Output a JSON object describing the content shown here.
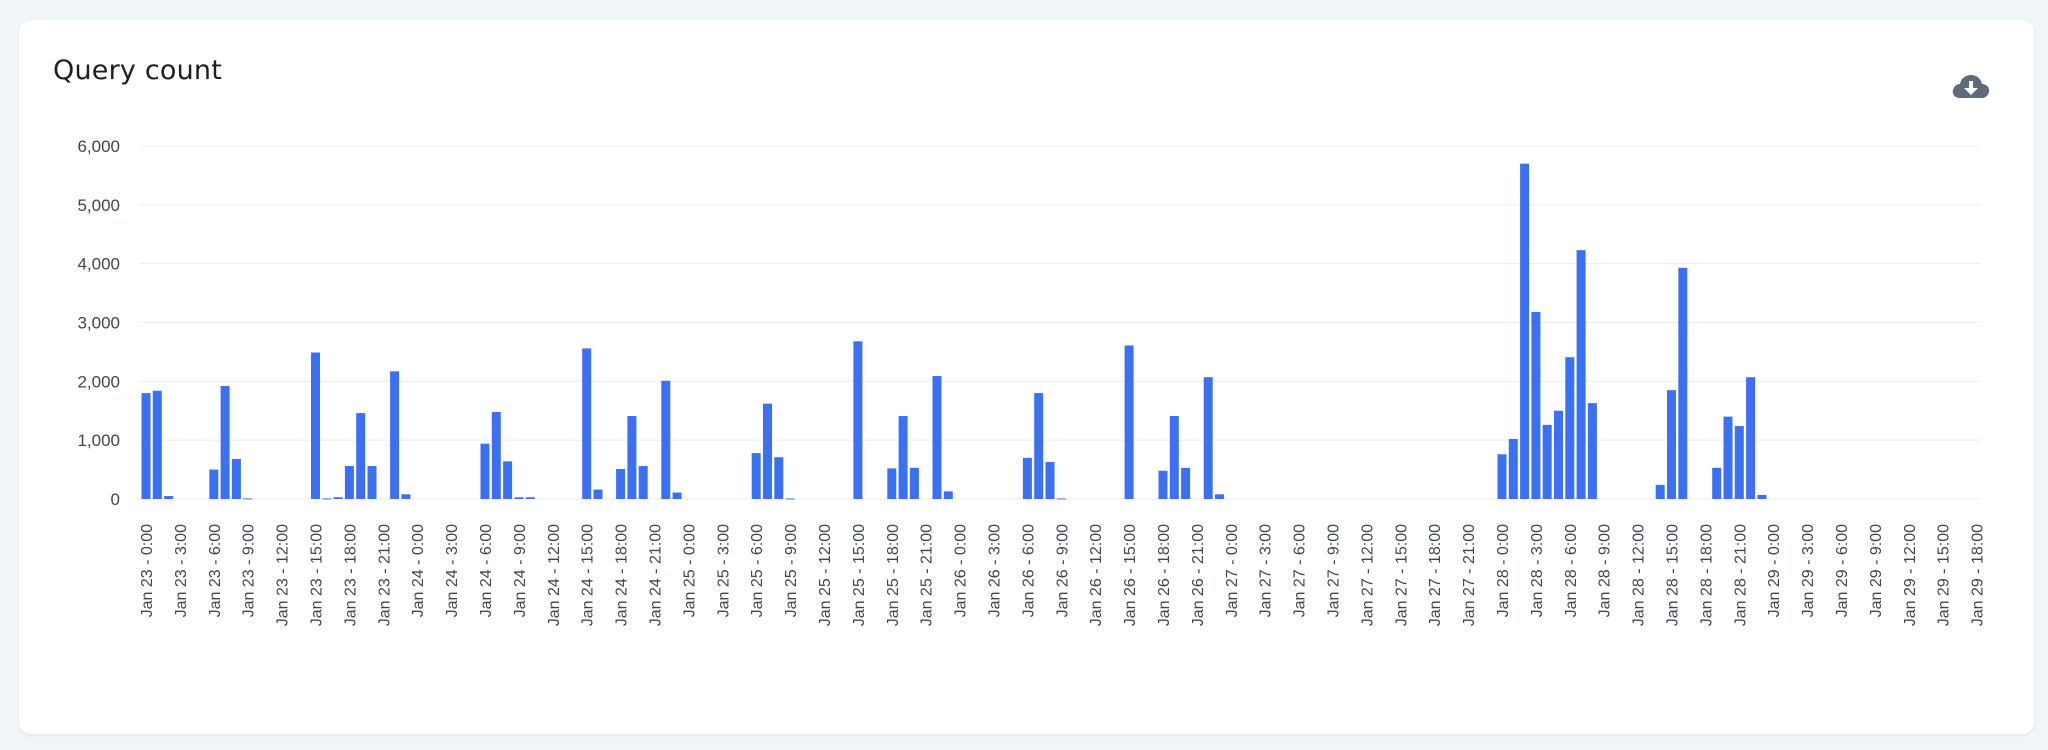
{
  "card": {
    "title": "Query count"
  },
  "toolbar": {
    "download_icon": "cloud-download-icon"
  },
  "colors": {
    "bar": "#3b71f0",
    "grid": "#e9ecf0",
    "text": "#3f4650",
    "background": "#f1f4f8"
  },
  "chart_data": {
    "type": "bar",
    "title": "Query count",
    "xlabel": "",
    "ylabel": "",
    "ylim": [
      0,
      6000
    ],
    "yticks": [
      0,
      1000,
      2000,
      3000,
      4000,
      5000,
      6000
    ],
    "ytick_labels": [
      "0",
      "1,000",
      "2,000",
      "3,000",
      "4,000",
      "5,000",
      "6,000"
    ],
    "grid": true,
    "legend": "none",
    "hours_per_bar": 1,
    "first_category": "Jan 23 - 0:00",
    "tick_every_n_bars": 3,
    "xtick_labels": [
      "Jan 23 - 0:00",
      "Jan 23 - 3:00",
      "Jan 23 - 6:00",
      "Jan 23 - 9:00",
      "Jan 23 - 12:00",
      "Jan 23 - 15:00",
      "Jan 23 - 18:00",
      "Jan 23 - 21:00",
      "Jan 24 - 0:00",
      "Jan 24 - 3:00",
      "Jan 24 - 6:00",
      "Jan 24 - 9:00",
      "Jan 24 - 12:00",
      "Jan 24 - 15:00",
      "Jan 24 - 18:00",
      "Jan 24 - 21:00",
      "Jan 25 - 0:00",
      "Jan 25 - 3:00",
      "Jan 25 - 6:00",
      "Jan 25 - 9:00",
      "Jan 25 - 12:00",
      "Jan 25 - 15:00",
      "Jan 25 - 18:00",
      "Jan 25 - 21:00",
      "Jan 26 - 0:00",
      "Jan 26 - 3:00",
      "Jan 26 - 6:00",
      "Jan 26 - 9:00",
      "Jan 26 - 12:00",
      "Jan 26 - 15:00",
      "Jan 26 - 18:00",
      "Jan 26 - 21:00",
      "Jan 27 - 0:00",
      "Jan 27 - 3:00",
      "Jan 27 - 6:00",
      "Jan 27 - 9:00",
      "Jan 27 - 12:00",
      "Jan 27 - 15:00",
      "Jan 27 - 18:00",
      "Jan 27 - 21:00",
      "Jan 28 - 0:00",
      "Jan 28 - 3:00",
      "Jan 28 - 6:00",
      "Jan 28 - 9:00",
      "Jan 28 - 12:00",
      "Jan 28 - 15:00",
      "Jan 28 - 18:00",
      "Jan 28 - 21:00",
      "Jan 29 - 0:00",
      "Jan 29 - 3:00",
      "Jan 29 - 6:00",
      "Jan 29 - 9:00",
      "Jan 29 - 12:00",
      "Jan 29 - 15:00",
      "Jan 29 - 18:00"
    ],
    "values": [
      1800,
      1840,
      50,
      0,
      0,
      0,
      500,
      1920,
      680,
      10,
      0,
      0,
      0,
      0,
      0,
      2490,
      10,
      30,
      560,
      1460,
      560,
      0,
      2170,
      80,
      0,
      0,
      0,
      0,
      0,
      0,
      940,
      1480,
      640,
      30,
      30,
      0,
      0,
      0,
      0,
      2560,
      160,
      0,
      510,
      1410,
      560,
      0,
      2010,
      110,
      0,
      0,
      0,
      0,
      0,
      0,
      780,
      1620,
      710,
      10,
      0,
      0,
      0,
      0,
      0,
      2680,
      0,
      0,
      520,
      1410,
      530,
      0,
      2090,
      130,
      0,
      0,
      0,
      0,
      0,
      0,
      700,
      1800,
      630,
      10,
      0,
      0,
      0,
      0,
      0,
      2610,
      0,
      0,
      480,
      1410,
      530,
      0,
      2070,
      80,
      0,
      0,
      0,
      0,
      0,
      0,
      0,
      0,
      0,
      0,
      0,
      0,
      0,
      0,
      0,
      0,
      0,
      0,
      0,
      0,
      0,
      0,
      0,
      0,
      760,
      1020,
      5700,
      3180,
      1260,
      1500,
      2410,
      4230,
      1630,
      0,
      0,
      0,
      0,
      0,
      240,
      1850,
      3930,
      0,
      0,
      530,
      1400,
      1240,
      2070,
      70,
      0,
      0,
      0,
      0,
      0,
      0,
      0,
      0,
      0,
      0,
      0,
      0,
      0,
      0,
      0,
      0,
      0,
      0,
      0
    ]
  }
}
